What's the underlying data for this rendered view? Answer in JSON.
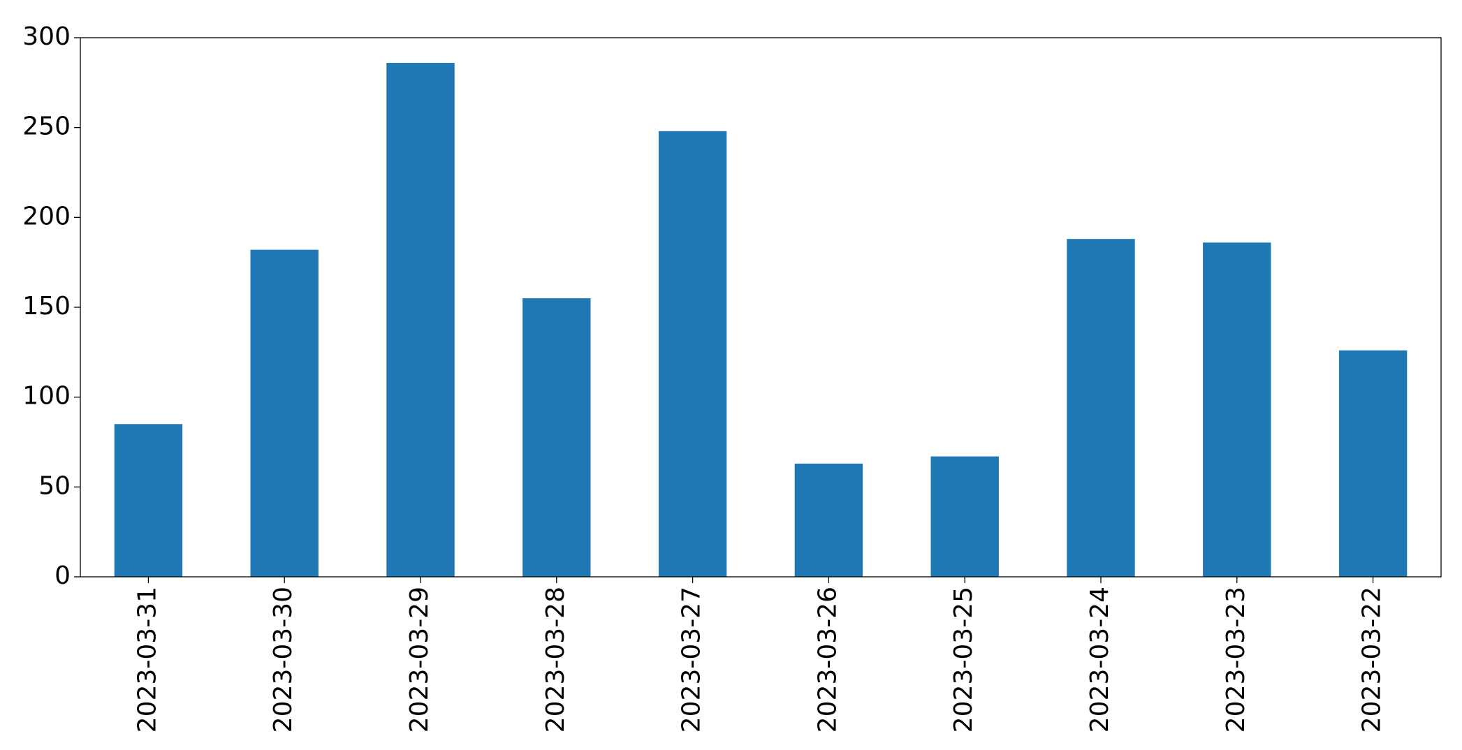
{
  "chart_data": {
    "type": "bar",
    "categories": [
      "2023-03-31",
      "2023-03-30",
      "2023-03-29",
      "2023-03-28",
      "2023-03-27",
      "2023-03-26",
      "2023-03-25",
      "2023-03-24",
      "2023-03-23",
      "2023-03-22"
    ],
    "values": [
      85,
      182,
      286,
      155,
      248,
      63,
      67,
      188,
      186,
      126
    ],
    "color": "#1f77b4",
    "ylim": [
      0,
      300
    ],
    "yticks": [
      0,
      50,
      100,
      150,
      200,
      250,
      300
    ],
    "grid": false
  }
}
